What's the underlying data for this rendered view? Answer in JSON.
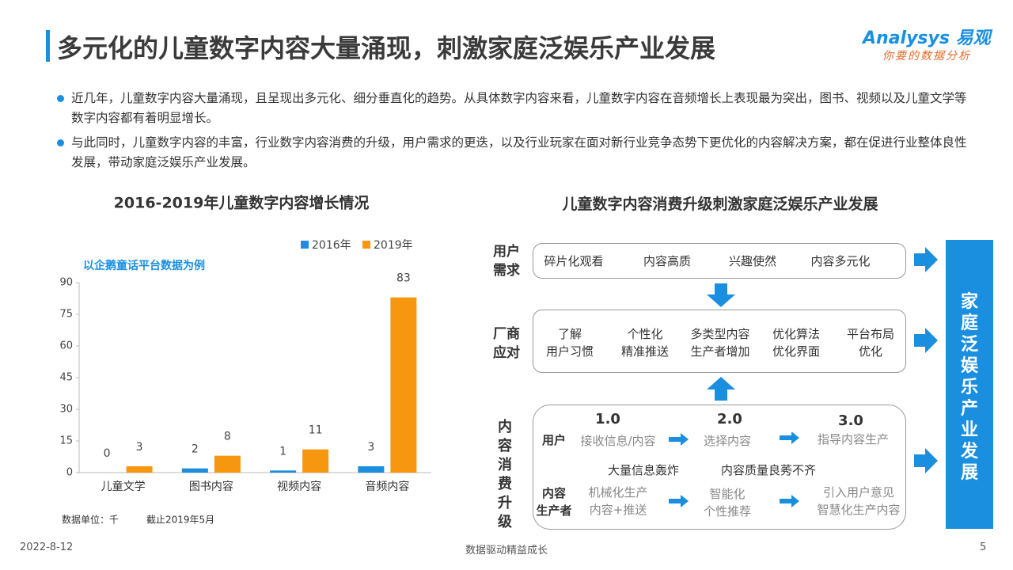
{
  "header": {
    "title": "多元化的儿童数字内容大量涌现，刺激家庭泛娱乐产业发展",
    "logo": "Analysys 易观",
    "slogan": "你要的数据分析"
  },
  "bullets": [
    "近几年，儿童数字内容大量涌现，且呈现出多元化、细分垂直化的趋势。从具体数字内容来看，儿童数字内容在音频增长上表现最为突出，图书、视频以及儿童文学等数字内容都有着明显增长。",
    "与此同时，儿童数字内容的丰富，行业数字内容消费的升级，用户需求的更迭，以及行业玩家在面对新行业竞争态势下更优化的内容解决方案，都在促进行业整体良性发展，带动家庭泛娱乐产业发展。"
  ],
  "chart_data": {
    "type": "bar",
    "title": "2016-2019年儿童数字内容增长情况",
    "subtitle": "以企鹅童话平台数据为例",
    "categories": [
      "儿童文学",
      "图书内容",
      "视频内容",
      "音频内容"
    ],
    "series": [
      {
        "name": "2016年",
        "color": "#1a8fe0",
        "values": [
          0,
          2,
          1,
          3
        ]
      },
      {
        "name": "2019年",
        "color": "#f7960f",
        "values": [
          3,
          8,
          11,
          83
        ]
      }
    ],
    "ylim": [
      0,
      90
    ],
    "yticks": [
      0,
      15,
      30,
      45,
      60,
      75,
      90
    ],
    "notes": [
      "数据单位：千",
      "截止2019年5月"
    ]
  },
  "diagram": {
    "title": "儿童数字内容消费升级刺激家庭泛娱乐产业发展",
    "needs": {
      "label": [
        "用户",
        "需求"
      ],
      "items": [
        "碎片化观看",
        "内容高质",
        "兴趣使然",
        "内容多元化"
      ]
    },
    "vendors": {
      "label": [
        "厂商",
        "应对"
      ],
      "items": [
        [
          "了解",
          "用户习惯"
        ],
        [
          "个性化",
          "精准推送"
        ],
        [
          "多类型内容",
          "生产者增加"
        ],
        [
          "优化算法",
          "优化界面"
        ],
        [
          "平台布局",
          "优化"
        ]
      ]
    },
    "upgrade": {
      "label": "内容消费升级",
      "stages": [
        "1.0",
        "2.0",
        "3.0"
      ],
      "user": {
        "label": "用户",
        "items": [
          "接收信息/内容",
          "选择内容",
          "指导内容生产"
        ]
      },
      "issues": [
        "大量信息轰炸",
        "内容质量良莠不齐"
      ],
      "producer": {
        "label": [
          "内容",
          "生产者"
        ],
        "items": [
          [
            "机械化生产",
            "内容+推送"
          ],
          [
            "智能化",
            "个性推荐"
          ],
          [
            "引入用户意见",
            "智慧化生产内容"
          ]
        ]
      }
    },
    "result": "家庭泛娱乐产业发展"
  },
  "footer": {
    "date": "2022-8-12",
    "center": "数据驱动精益成长",
    "page": "5"
  }
}
